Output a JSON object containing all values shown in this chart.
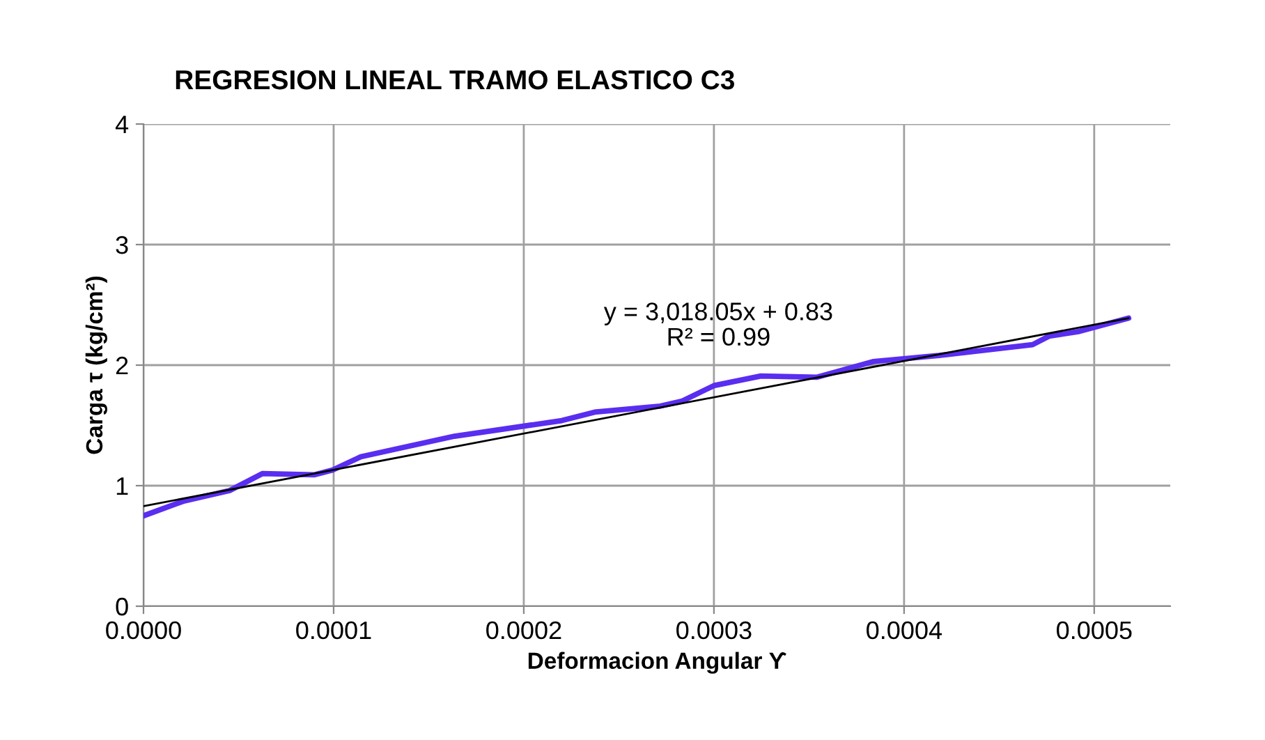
{
  "chart_data": {
    "type": "line",
    "title": "REGRESION LINEAL TRAMO ELASTICO C3",
    "xlabel": "Deformacion Angular ϒ",
    "ylabel": "Carga τ (kg/cm²)",
    "annotations": [
      "y = 3,018.05x + 0.83\nR² = 0.99"
    ],
    "series": [
      {
        "color": "#5a2ef0",
        "x": [
          0.0,
          2.07e-05,
          4.53e-05,
          6.25e-05,
          8.97e-05,
          9.95e-05,
          0.0001143,
          0.0001635,
          0.00022,
          0.0002373,
          0.0002718,
          0.000283,
          0.0003,
          0.0003247,
          0.0003543,
          0.000384,
          0.0004184,
          0.0004676,
          0.0004762,
          0.0004922,
          0.0005181
        ],
        "values": [
          0.75,
          0.87,
          0.96,
          1.1,
          1.09,
          1.13,
          1.24,
          1.41,
          1.54,
          1.61,
          1.66,
          1.7,
          1.83,
          1.91,
          1.9,
          2.03,
          2.08,
          2.17,
          2.24,
          2.28,
          2.39
        ]
      },
      {
        "color": "#000000",
        "x": [
          0.0,
          0.0005181
        ],
        "values": [
          0.83,
          2.39
        ]
      }
    ],
    "xlim": [
      0,
      0.00054
    ],
    "xticks": [
      {
        "value": 0,
        "label": "0.0000"
      },
      {
        "value": 0.0001,
        "label": "0.0001"
      },
      {
        "value": 0.0002,
        "label": "0.0002"
      },
      {
        "value": 0.0003,
        "label": "0.0003"
      },
      {
        "value": 0.0004,
        "label": "0.0004"
      },
      {
        "value": 0.0005,
        "label": "0.0005"
      }
    ],
    "ylim": [
      0,
      4
    ],
    "yticks": [
      0,
      1,
      2,
      3,
      4
    ],
    "grid": true,
    "legend": false,
    "marker": "none",
    "line_style": "solid"
  }
}
